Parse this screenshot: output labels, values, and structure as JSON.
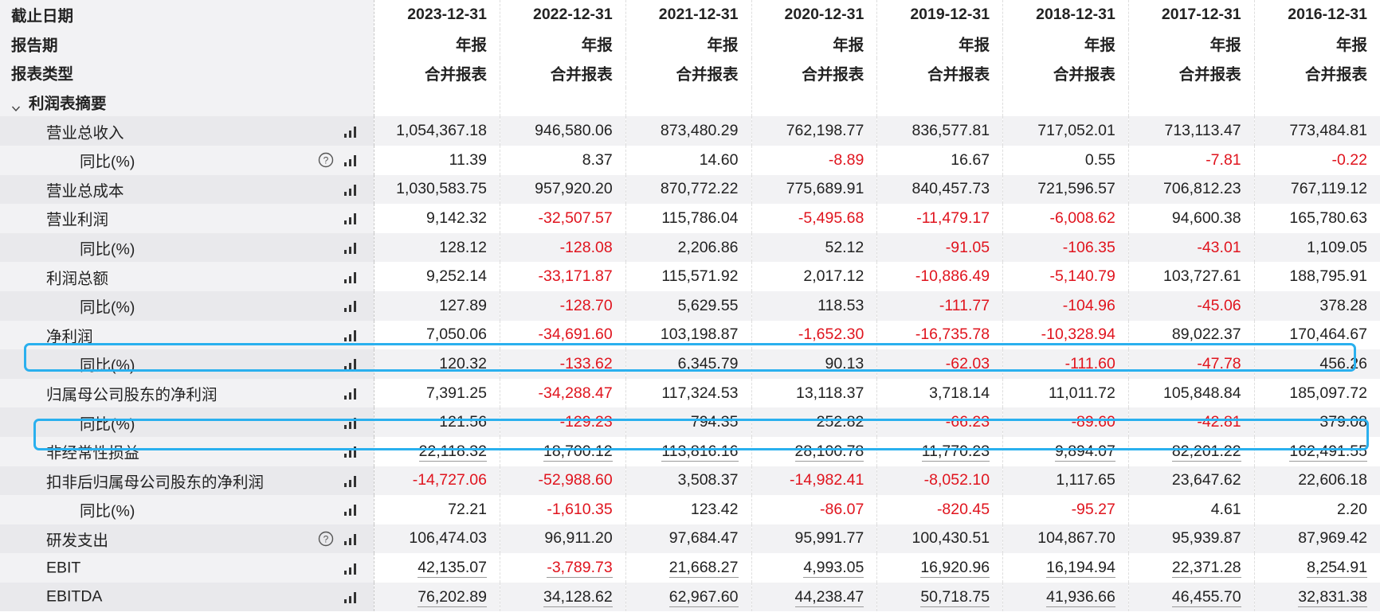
{
  "header": {
    "rows": [
      {
        "label": "截止日期",
        "values": [
          "2023-12-31",
          "2022-12-31",
          "2021-12-31",
          "2020-12-31",
          "2019-12-31",
          "2018-12-31",
          "2017-12-31",
          "2016-12-31"
        ]
      },
      {
        "label": "报告期",
        "values": [
          "年报",
          "年报",
          "年报",
          "年报",
          "年报",
          "年报",
          "年报",
          "年报"
        ]
      },
      {
        "label": "报表类型",
        "values": [
          "合并报表",
          "合并报表",
          "合并报表",
          "合并报表",
          "合并报表",
          "合并报表",
          "合并报表",
          "合并报表"
        ]
      }
    ]
  },
  "section": {
    "label": "利润表摘要",
    "icon": "chevron-down-icon"
  },
  "rows": [
    {
      "label": "营业总收入",
      "level": 1,
      "help": false,
      "underline": false,
      "values": [
        "1,054,367.18",
        "946,580.06",
        "873,480.29",
        "762,198.77",
        "836,577.81",
        "717,052.01",
        "713,113.47",
        "773,484.81"
      ]
    },
    {
      "label": "同比(%)",
      "level": 2,
      "help": true,
      "underline": false,
      "values": [
        "11.39",
        "8.37",
        "14.60",
        "-8.89",
        "16.67",
        "0.55",
        "-7.81",
        "-0.22"
      ]
    },
    {
      "label": "营业总成本",
      "level": 1,
      "help": false,
      "underline": false,
      "values": [
        "1,030,583.75",
        "957,920.20",
        "870,772.22",
        "775,689.91",
        "840,457.73",
        "721,596.57",
        "706,812.23",
        "767,119.12"
      ]
    },
    {
      "label": "营业利润",
      "level": 1,
      "help": false,
      "underline": false,
      "values": [
        "9,142.32",
        "-32,507.57",
        "115,786.04",
        "-5,495.68",
        "-11,479.17",
        "-6,008.62",
        "94,600.38",
        "165,780.63"
      ]
    },
    {
      "label": "同比(%)",
      "level": 2,
      "help": false,
      "underline": false,
      "values": [
        "128.12",
        "-128.08",
        "2,206.86",
        "52.12",
        "-91.05",
        "-106.35",
        "-43.01",
        "1,109.05"
      ]
    },
    {
      "label": "利润总额",
      "level": 1,
      "help": false,
      "underline": false,
      "values": [
        "9,252.14",
        "-33,171.87",
        "115,571.92",
        "2,017.12",
        "-10,886.49",
        "-5,140.79",
        "103,727.61",
        "188,795.91"
      ]
    },
    {
      "label": "同比(%)",
      "level": 2,
      "help": false,
      "underline": false,
      "values": [
        "127.89",
        "-128.70",
        "5,629.55",
        "118.53",
        "-111.77",
        "-104.96",
        "-45.06",
        "378.28"
      ]
    },
    {
      "label": "净利润",
      "level": 1,
      "help": false,
      "underline": false,
      "values": [
        "7,050.06",
        "-34,691.60",
        "103,198.87",
        "-1,652.30",
        "-16,735.78",
        "-10,328.94",
        "89,022.37",
        "170,464.67"
      ]
    },
    {
      "label": "同比(%)",
      "level": 2,
      "help": false,
      "underline": false,
      "values": [
        "120.32",
        "-133.62",
        "6,345.79",
        "90.13",
        "-62.03",
        "-111.60",
        "-47.78",
        "456.26"
      ]
    },
    {
      "label": "归属母公司股东的净利润",
      "level": 1,
      "help": false,
      "underline": false,
      "values": [
        "7,391.25",
        "-34,288.47",
        "117,324.53",
        "13,118.37",
        "3,718.14",
        "11,011.72",
        "105,848.84",
        "185,097.72"
      ]
    },
    {
      "label": "同比(%)",
      "level": 2,
      "help": false,
      "underline": false,
      "values": [
        "121.56",
        "-129.23",
        "794.35",
        "252.82",
        "-66.23",
        "-89.60",
        "-42.81",
        "379.08"
      ]
    },
    {
      "label": "非经常性损益",
      "level": 1,
      "help": false,
      "underline": true,
      "values": [
        "22,118.32",
        "18,700.12",
        "113,816.16",
        "28,100.78",
        "11,770.23",
        "9,894.07",
        "82,201.22",
        "162,491.55"
      ]
    },
    {
      "label": "扣非后归属母公司股东的净利润",
      "level": 1,
      "help": false,
      "underline": false,
      "values": [
        "-14,727.06",
        "-52,988.60",
        "3,508.37",
        "-14,982.41",
        "-8,052.10",
        "1,117.65",
        "23,647.62",
        "22,606.18"
      ]
    },
    {
      "label": "同比(%)",
      "level": 2,
      "help": false,
      "underline": false,
      "values": [
        "72.21",
        "-1,610.35",
        "123.42",
        "-86.07",
        "-820.45",
        "-95.27",
        "4.61",
        "2.20"
      ]
    },
    {
      "label": "研发支出",
      "level": 1,
      "help": true,
      "underline": false,
      "values": [
        "106,474.03",
        "96,911.20",
        "97,684.47",
        "95,991.77",
        "100,430.51",
        "104,867.70",
        "95,939.87",
        "87,969.42"
      ]
    },
    {
      "label": "EBIT",
      "level": 1,
      "help": false,
      "underline": true,
      "values": [
        "42,135.07",
        "-3,789.73",
        "21,668.27",
        "4,993.05",
        "16,920.96",
        "16,194.94",
        "22,371.28",
        "8,254.91"
      ]
    },
    {
      "label": "EBITDA",
      "level": 1,
      "help": false,
      "underline": true,
      "values": [
        "76,202.89",
        "34,128.62",
        "62,967.60",
        "44,238.47",
        "50,718.75",
        "41,936.66",
        "46,455.70",
        "32,831.38"
      ]
    }
  ],
  "icons": {
    "chart": "bar-chart-icon",
    "help": "help-circle-icon"
  },
  "colors": {
    "negative": "#e0141e",
    "highlight": "#2ab0ee"
  }
}
